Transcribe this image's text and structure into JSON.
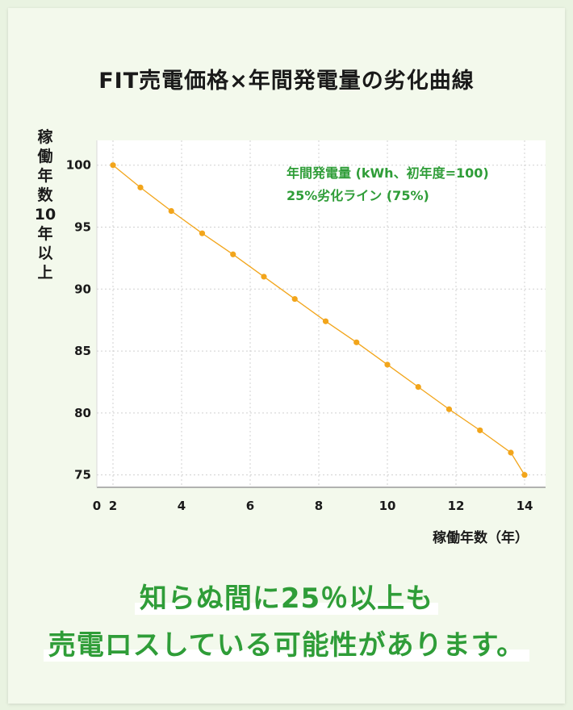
{
  "title": "FIT売電価格×年間発電量の劣化曲線",
  "ylabel_chars": [
    "稼",
    "働",
    "年",
    "数",
    "10",
    "年",
    "以",
    "上"
  ],
  "xlabel": "稼働年数（年）",
  "message_line1": "知らぬ間に25％以上も",
  "message_line2": "売電ロスしている可能性があります。",
  "colors": {
    "line": "#f2a51b",
    "legend_text": "#2f9d38",
    "message": "#2f9d38",
    "grid": "#d0d0d0"
  },
  "chart_data": {
    "type": "line",
    "title": "FIT売電価格×年間発電量の劣化曲線",
    "xlabel": "稼働年数（年）",
    "ylabel": "稼働年数10年以上",
    "xlim": [
      0,
      14
    ],
    "ylim": [
      74,
      102
    ],
    "x_ticks": [
      {
        "value": 0,
        "label": "0"
      },
      {
        "value": 2,
        "label": "2"
      },
      {
        "value": 4,
        "label": "4"
      },
      {
        "value": 6,
        "label": "6"
      },
      {
        "value": 8,
        "label": "8"
      },
      {
        "value": 10,
        "label": "10"
      },
      {
        "value": 12,
        "label": "12"
      },
      {
        "value": 14,
        "label": "14"
      }
    ],
    "y_ticks": [
      {
        "value": 75,
        "label": "75"
      },
      {
        "value": 80,
        "label": "80"
      },
      {
        "value": 85,
        "label": "85"
      },
      {
        "value": 90,
        "label": "90"
      },
      {
        "value": 95,
        "label": "95"
      },
      {
        "value": 100,
        "label": "100"
      }
    ],
    "grid": true,
    "legend_position": "top-right",
    "legend": [
      "年間発電量 (kWh、初年度=100)",
      "25%劣化ライン (75%)"
    ],
    "series": [
      {
        "name": "年間発電量 (kWh、初年度=100)",
        "x": [
          2,
          2.8,
          3.7,
          4.6,
          5.5,
          6.4,
          7.3,
          8.2,
          9.1,
          10,
          10.9,
          11.8,
          12.7,
          13.6,
          14
        ],
        "values": [
          100,
          98.2,
          96.3,
          94.5,
          92.8,
          91.0,
          89.2,
          87.4,
          85.7,
          83.9,
          82.1,
          80.3,
          78.6,
          76.8,
          75
        ]
      }
    ]
  }
}
